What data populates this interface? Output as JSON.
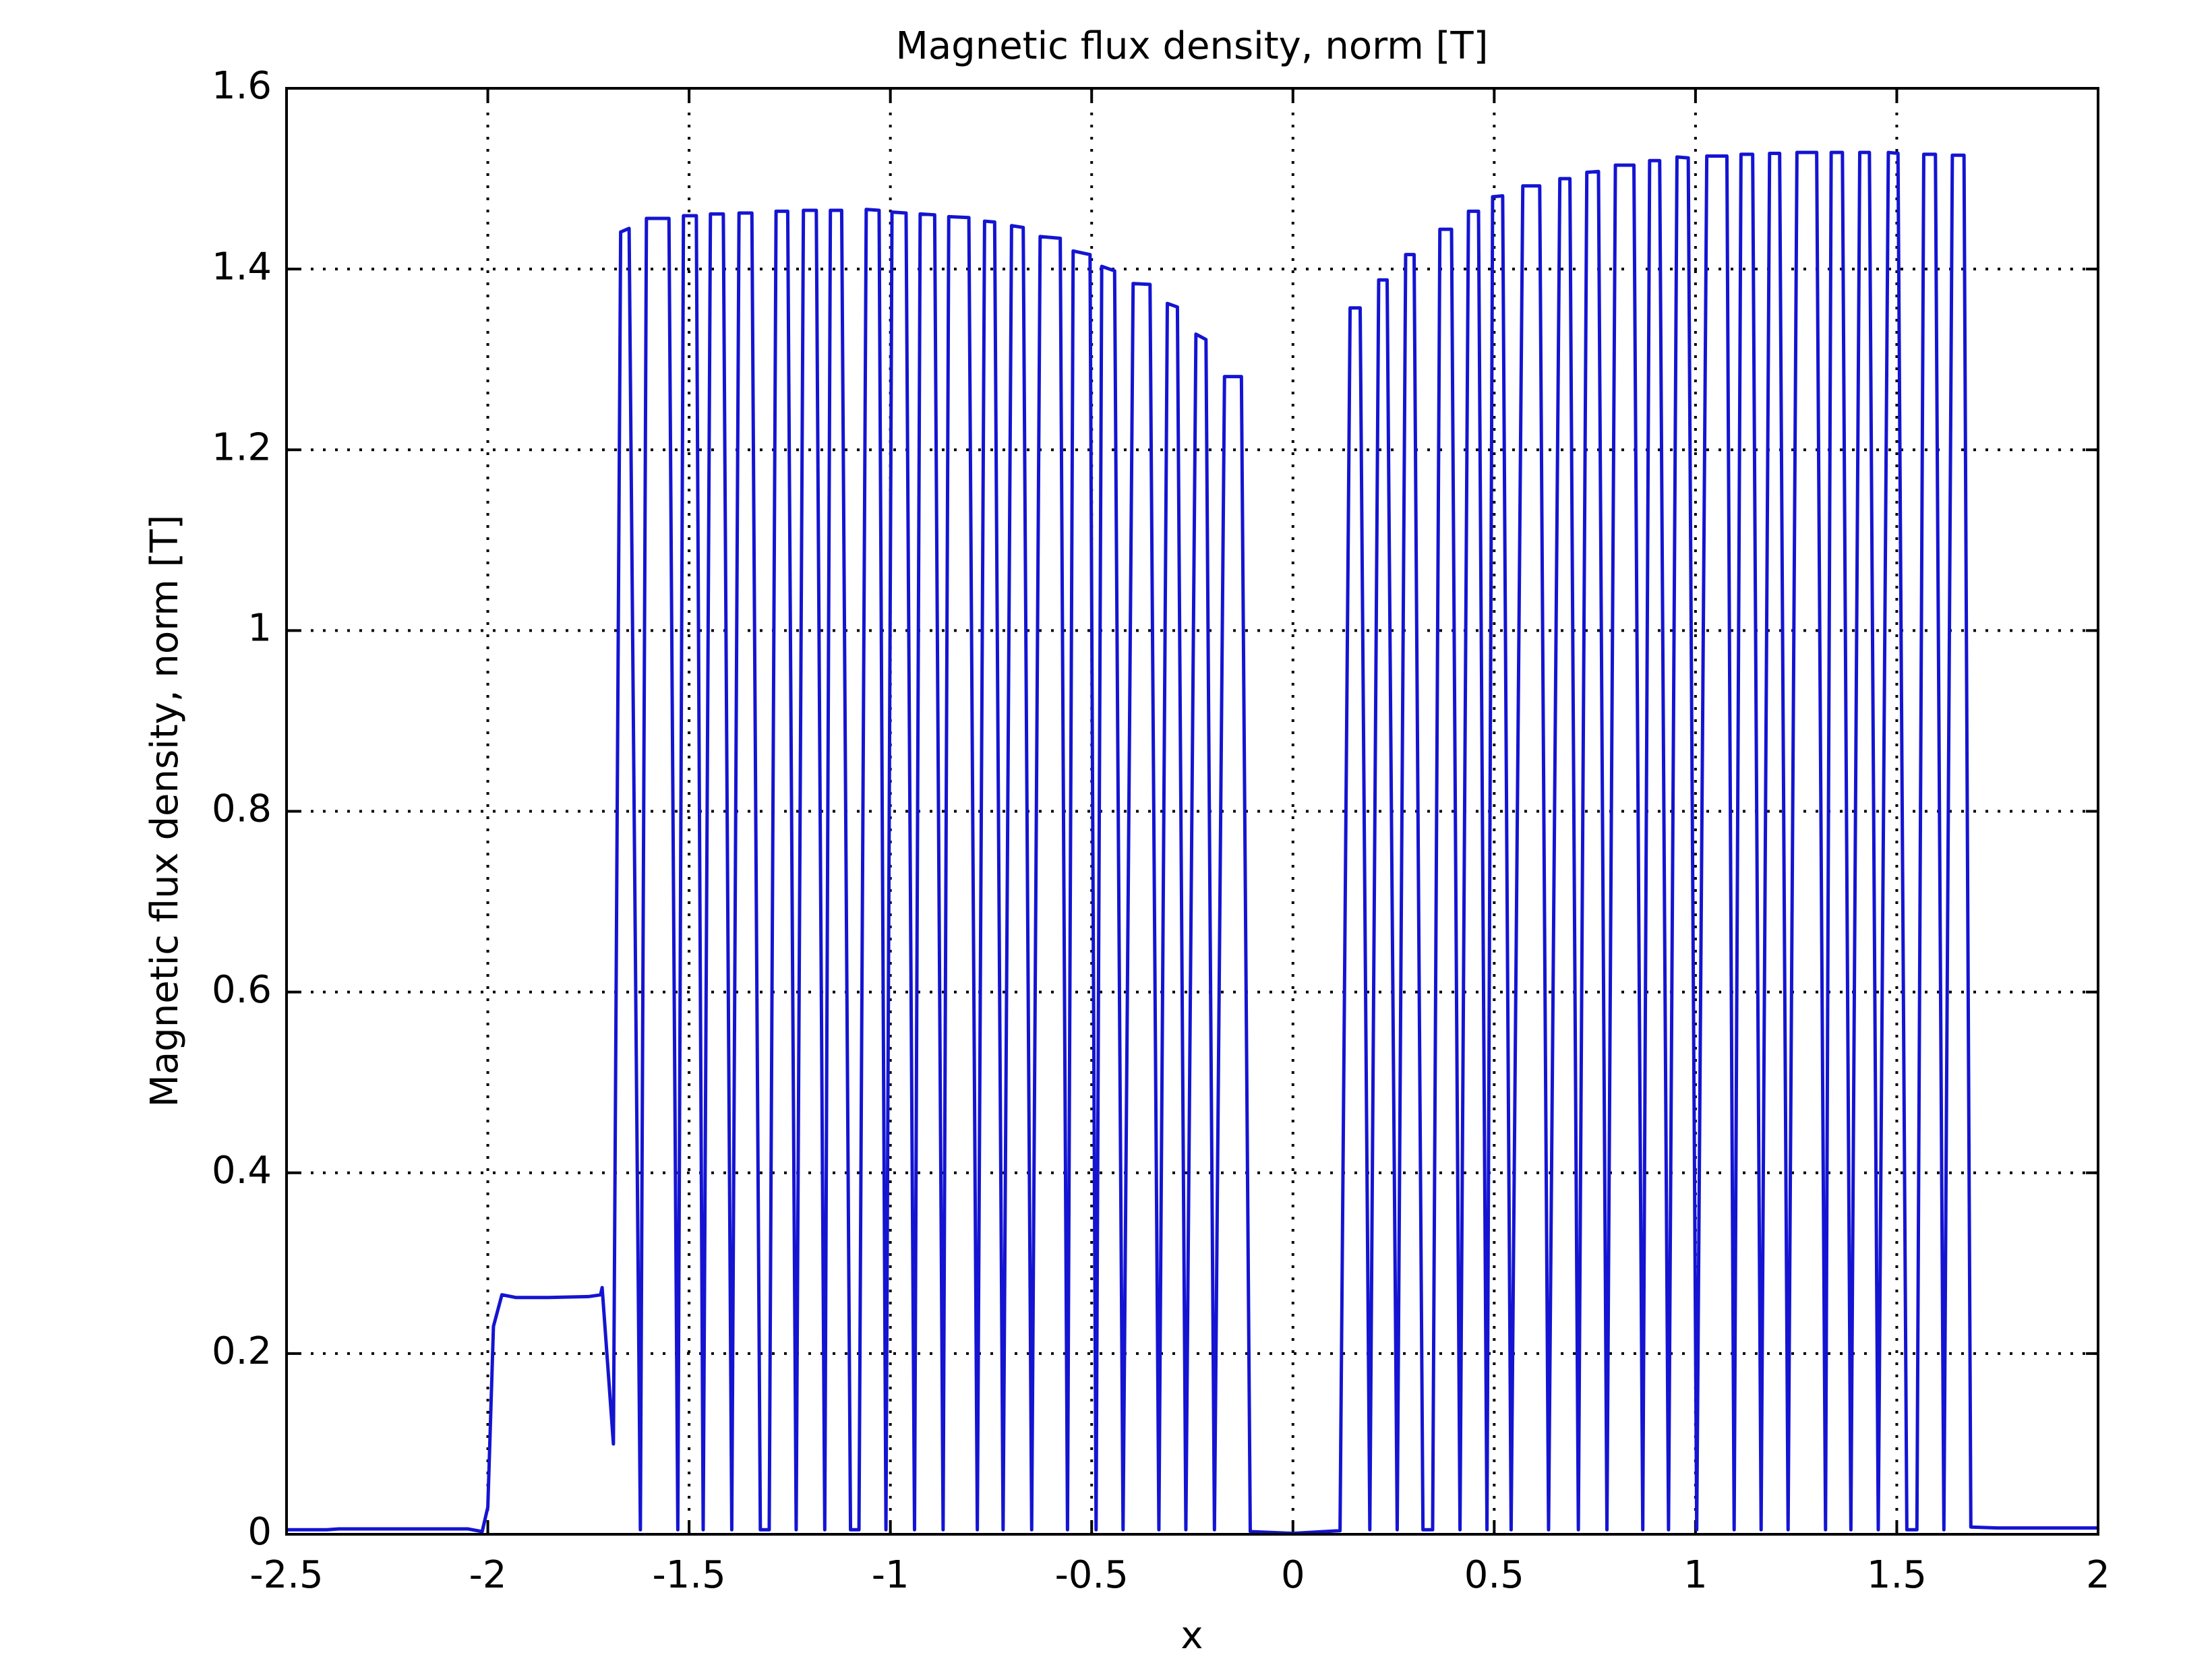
{
  "chart_data": {
    "type": "line",
    "title": "Magnetic flux density, norm [T]",
    "xlabel": "x",
    "ylabel": "Magnetic flux density, norm [T]",
    "color": "#1414d2",
    "grid": true,
    "xlim": [
      -2.5,
      2
    ],
    "ylim": [
      0,
      1.6
    ],
    "xticks": [
      -2.5,
      -2,
      -1.5,
      -1,
      -0.5,
      0,
      0.5,
      1,
      1.5,
      2
    ],
    "yticks": [
      0,
      0.2,
      0.4,
      0.6,
      0.8,
      1,
      1.2,
      1.4,
      1.6
    ],
    "x": [
      -2.5,
      -2.4,
      -2.37,
      -2.05,
      -2.014,
      -2.0,
      -1.986,
      -1.965,
      -1.93,
      -1.85,
      -1.75,
      -1.72,
      -1.716,
      -1.688,
      -1.67,
      -1.649,
      -1.621,
      -1.606,
      -1.55,
      -1.528,
      -1.514,
      -1.482,
      -1.465,
      -1.447,
      -1.415,
      -1.394,
      -1.376,
      -1.344,
      -1.323,
      -1.301,
      -1.284,
      -1.255,
      -1.234,
      -1.216,
      -1.184,
      -1.163,
      -1.149,
      -1.121,
      -1.099,
      -1.078,
      -1.06,
      -1.028,
      -1.011,
      -0.996,
      -0.961,
      -0.94,
      -0.926,
      -0.89,
      -0.869,
      -0.855,
      -0.805,
      -0.784,
      -0.766,
      -0.741,
      -0.72,
      -0.699,
      -0.67,
      -0.649,
      -0.628,
      -0.578,
      -0.56,
      -0.546,
      -0.504,
      -0.489,
      -0.475,
      -0.443,
      -0.422,
      -0.397,
      -0.355,
      -0.333,
      -0.312,
      -0.287,
      -0.266,
      -0.241,
      -0.216,
      -0.195,
      -0.17,
      -0.128,
      -0.106,
      0.0,
      0.117,
      0.142,
      0.167,
      0.191,
      0.213,
      0.234,
      0.259,
      0.28,
      0.301,
      0.323,
      0.347,
      0.365,
      0.394,
      0.415,
      0.436,
      0.461,
      0.482,
      0.496,
      0.521,
      0.542,
      0.571,
      0.613,
      0.635,
      0.663,
      0.688,
      0.709,
      0.73,
      0.759,
      0.78,
      0.801,
      0.847,
      0.869,
      0.886,
      0.911,
      0.933,
      0.954,
      0.982,
      1.003,
      1.028,
      1.078,
      1.096,
      1.113,
      1.142,
      1.163,
      1.184,
      1.209,
      1.23,
      1.252,
      1.301,
      1.323,
      1.337,
      1.365,
      1.386,
      1.408,
      1.432,
      1.454,
      1.479,
      1.503,
      1.525,
      1.55,
      1.567,
      1.596,
      1.617,
      1.638,
      1.667,
      1.684,
      1.75,
      2.0
    ],
    "values": [
      0.005,
      0.005,
      0.006,
      0.006,
      0.003,
      0.03,
      0.23,
      0.265,
      0.262,
      0.262,
      0.263,
      0.265,
      0.273,
      0.1,
      1.441,
      1.445,
      0.005,
      1.456,
      1.456,
      0.005,
      1.459,
      1.459,
      0.005,
      1.461,
      1.461,
      0.005,
      1.462,
      1.462,
      0.005,
      0.005,
      1.464,
      1.464,
      0.005,
      1.465,
      1.465,
      0.005,
      1.465,
      1.465,
      0.005,
      0.005,
      1.466,
      1.465,
      0.005,
      1.463,
      1.462,
      0.005,
      1.461,
      1.46,
      0.005,
      1.458,
      1.457,
      0.005,
      1.453,
      1.452,
      0.005,
      1.448,
      1.446,
      0.005,
      1.436,
      1.434,
      0.005,
      1.42,
      1.416,
      0.005,
      1.403,
      1.398,
      0.005,
      1.384,
      1.383,
      0.005,
      1.362,
      1.358,
      0.005,
      1.328,
      1.322,
      0.005,
      1.281,
      1.281,
      0.003,
      0.001,
      0.004,
      1.357,
      1.357,
      0.005,
      1.388,
      1.388,
      0.005,
      1.416,
      1.416,
      0.005,
      0.005,
      1.444,
      1.444,
      0.005,
      1.464,
      1.464,
      0.005,
      1.48,
      1.481,
      0.005,
      1.492,
      1.492,
      0.005,
      1.5,
      1.5,
      0.005,
      1.507,
      1.508,
      0.005,
      1.515,
      1.515,
      0.005,
      1.52,
      1.52,
      0.005,
      1.524,
      1.523,
      0.005,
      1.525,
      1.525,
      0.005,
      1.527,
      1.527,
      0.005,
      1.528,
      1.528,
      0.005,
      1.529,
      1.529,
      0.005,
      1.529,
      1.529,
      0.005,
      1.529,
      1.529,
      0.005,
      1.529,
      1.528,
      0.005,
      0.005,
      1.527,
      1.527,
      0.005,
      1.526,
      1.526,
      0.008,
      0.007,
      0.007
    ]
  }
}
